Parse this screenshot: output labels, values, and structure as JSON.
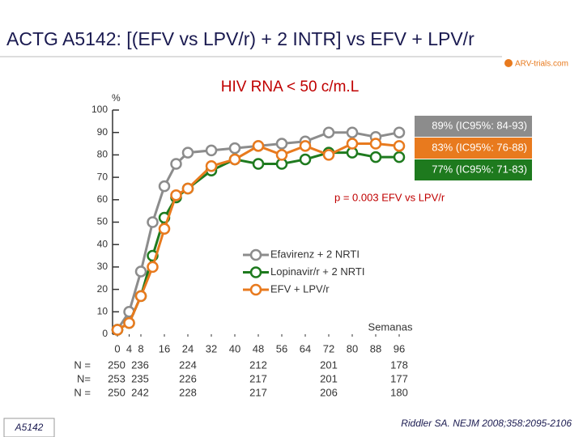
{
  "chart_data": {
    "type": "line",
    "title": "ACTG A5142: [(EFV vs LPV/r) + 2 INTR] vs EFV + LPV/r",
    "subtitle": "HIV RNA < 50 c/m.L",
    "logo": "ARV-trials.com",
    "y_label": "%",
    "x_label": "Semanas",
    "x": [
      0,
      4,
      8,
      12,
      16,
      20,
      24,
      32,
      40,
      48,
      56,
      64,
      72,
      80,
      88,
      96
    ],
    "series": [
      {
        "name": "Efavirenz + 2 NRTI",
        "color": "#8c8c8c",
        "values": [
          2,
          10,
          28,
          50,
          66,
          76,
          81,
          82,
          83,
          84,
          85,
          86,
          90,
          90,
          88,
          90
        ]
      },
      {
        "name": "Lopinavir/r + 2 NRTI",
        "color": "#1e7a1e",
        "values": [
          2,
          5,
          17,
          35,
          52,
          61,
          65,
          73,
          78,
          76,
          76,
          78,
          81,
          81,
          79,
          79
        ]
      },
      {
        "name": "EFV + LPV/r",
        "color": "#e87a1e",
        "values": [
          2,
          5,
          17,
          30,
          47,
          62,
          65,
          75,
          78,
          84,
          80,
          84,
          80,
          85,
          85,
          84
        ]
      }
    ],
    "xlim": [
      0,
      96
    ],
    "xticks": [
      0,
      4,
      8,
      16,
      24,
      32,
      40,
      48,
      56,
      64,
      72,
      80,
      88,
      96
    ],
    "ylim": [
      0,
      100
    ],
    "yticks": [
      0,
      10,
      20,
      30,
      40,
      50,
      60,
      70,
      80,
      90,
      100
    ],
    "annotations": [
      {
        "text": "89% (IC95%: 84-93)",
        "color": "#8c8c8c"
      },
      {
        "text": "83% (IC95%: 76-88)",
        "color": "#e87a1e"
      },
      {
        "text": "77% (IC95%: 71-83)",
        "color": "#1e7a1e"
      }
    ],
    "p_value": "p = 0.003 EFV vs LPV/r",
    "n_table": [
      {
        "label": "N =",
        "values": [
          250,
          236,
          224,
          212,
          201,
          178
        ]
      },
      {
        "label": "N=",
        "values": [
          253,
          235,
          226,
          217,
          201,
          177
        ]
      },
      {
        "label": "N =",
        "values": [
          250,
          242,
          228,
          217,
          206,
          180
        ]
      }
    ],
    "footer_left": "A5142",
    "reference": "Riddler SA. NEJM 2008;358:2095-2106"
  }
}
